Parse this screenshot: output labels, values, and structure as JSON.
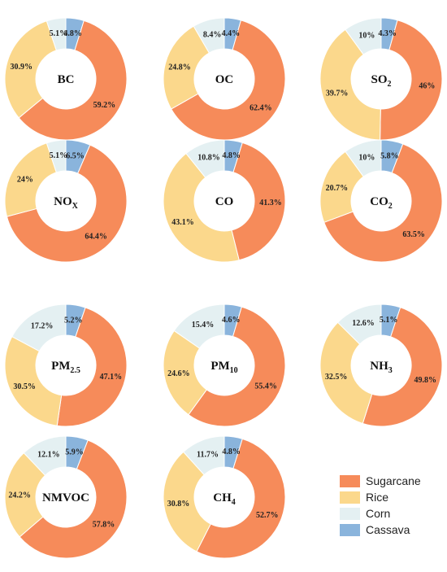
{
  "chart_data": {
    "type": "pie",
    "variant": "donut",
    "legend": {
      "placement": "bottom-right",
      "entries": [
        {
          "name": "Sugarcane",
          "color": "#f68b5a"
        },
        {
          "name": "Rice",
          "color": "#fbd88c"
        },
        {
          "name": "Corn",
          "color": "#e4f0f2"
        },
        {
          "name": "Cassava",
          "color": "#8ab4dc"
        }
      ]
    },
    "charts": [
      {
        "title": "BC",
        "sub": "",
        "values": [
          59.2,
          30.9,
          5.1,
          4.8
        ],
        "labels": [
          "59.2%",
          "30.9%",
          "5.1%",
          "4.8%"
        ]
      },
      {
        "title": "OC",
        "sub": "",
        "values": [
          62.4,
          24.8,
          8.4,
          4.4
        ],
        "labels": [
          "62.4%",
          "24.8%",
          "8.4%",
          "4.4%"
        ]
      },
      {
        "title": "SO",
        "sub": "2",
        "values": [
          46,
          39.7,
          10,
          4.3
        ],
        "labels": [
          "46%",
          "39.7%",
          "10%",
          "4.3%"
        ]
      },
      {
        "title": "NO",
        "sub": "X",
        "values": [
          64.4,
          24,
          5.1,
          6.5
        ],
        "labels": [
          "64.4%",
          "24%",
          "5.1%",
          "6.5%"
        ]
      },
      {
        "title": "CO",
        "sub": "",
        "values": [
          41.3,
          43.1,
          10.8,
          4.8
        ],
        "labels": [
          "41.3%",
          "43.1%",
          "10.8%",
          "4.8%"
        ]
      },
      {
        "title": "CO",
        "sub": "2",
        "values": [
          63.5,
          20.7,
          10,
          5.8
        ],
        "labels": [
          "63.5%",
          "20.7%",
          "10%",
          "5.8%"
        ]
      },
      {
        "title": "PM",
        "sub": "2.5",
        "values": [
          47.1,
          30.5,
          17.2,
          5.2
        ],
        "labels": [
          "47.1%",
          "30.5%",
          "17.2%",
          "5.2%"
        ]
      },
      {
        "title": "PM",
        "sub": "10",
        "values": [
          55.4,
          24.6,
          15.4,
          4.6
        ],
        "labels": [
          "55.4%",
          "24.6%",
          "15.4%",
          "4.6%"
        ]
      },
      {
        "title": "NH",
        "sub": "3",
        "values": [
          49.8,
          32.5,
          12.6,
          5.1
        ],
        "labels": [
          "49.8%",
          "32.5%",
          "12.6%",
          "5.1%"
        ]
      },
      {
        "title": "NMVOC",
        "sub": "",
        "values": [
          57.8,
          24.2,
          12.1,
          5.9
        ],
        "labels": [
          "57.8%",
          "24.2%",
          "12.1%",
          "5.9%"
        ]
      },
      {
        "title": "CH",
        "sub": "4",
        "values": [
          52.7,
          30.8,
          11.7,
          4.8
        ],
        "labels": [
          "52.7%",
          "30.8%",
          "11.7%",
          "4.8%"
        ]
      }
    ]
  }
}
